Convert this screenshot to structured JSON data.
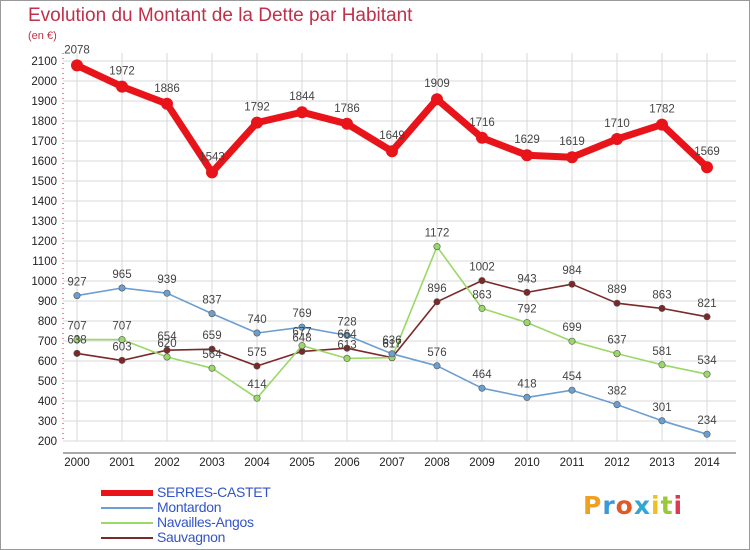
{
  "title": "Evolution du Montant de la Dette par Habitant",
  "unit": "(en €)",
  "logo": {
    "text": "Proxiti",
    "colors": [
      "#f0a020",
      "#3a9ad8",
      "#e05a28",
      "#30a8d0",
      "#f0c020",
      "#9ac838",
      "#e03850"
    ]
  },
  "chart_data": {
    "type": "line",
    "x": [
      "2000",
      "2001",
      "2002",
      "2003",
      "2004",
      "2005",
      "2006",
      "2007",
      "2008",
      "2009",
      "2010",
      "2011",
      "2012",
      "2013",
      "2014"
    ],
    "ylim": [
      200,
      2100
    ],
    "yticks": [
      "200",
      "300",
      "400",
      "500",
      "600",
      "700",
      "800",
      "900",
      "1000",
      "1100",
      "1200",
      "1300",
      "1400",
      "1500",
      "1600",
      "1700",
      "1800",
      "1900",
      "2000",
      "2100"
    ],
    "grid": true,
    "legend_position": "bottom-left",
    "series": [
      {
        "name": "SERRES-CASTET",
        "color": "#e8141a",
        "values": [
          2078,
          1972,
          1886,
          1543,
          1792,
          1844,
          1786,
          1649,
          1909,
          1716,
          1629,
          1619,
          1710,
          1782,
          1569
        ],
        "labels": [
          "2078",
          "1972",
          "1886",
          "1543",
          "1792",
          "1844",
          "1786",
          "1649",
          "1909",
          "1716",
          "1629",
          "1619",
          "1710",
          "1782",
          "1569"
        ]
      },
      {
        "name": "Montardon",
        "color": "#6c9ed0",
        "values": [
          927,
          965,
          939,
          837,
          740,
          769,
          728,
          636,
          576,
          464,
          418,
          454,
          382,
          301,
          234
        ],
        "labels": [
          "927",
          "965",
          "939",
          "837",
          "740",
          "769",
          "728",
          "636",
          "576",
          "464",
          "418",
          "454",
          "382",
          "301",
          "234"
        ]
      },
      {
        "name": "Navailles-Angos",
        "color": "#9ad868",
        "values": [
          707,
          707,
          620,
          564,
          414,
          677,
          613,
          617,
          1172,
          863,
          792,
          699,
          637,
          581,
          534
        ],
        "labels": [
          "707",
          "707",
          "620",
          "564",
          "414",
          "677",
          "613",
          "617",
          "1172",
          "863",
          "792",
          "699",
          "637",
          "581",
          "534"
        ]
      },
      {
        "name": "Sauvagnon",
        "color": "#7a2828",
        "values": [
          638,
          603,
          654,
          659,
          575,
          648,
          664,
          617,
          896,
          1002,
          943,
          984,
          889,
          863,
          821
        ],
        "labels": [
          "638",
          "603",
          "654",
          "659",
          "575",
          "648",
          "664",
          "617",
          "896",
          "1002",
          "943",
          "984",
          "889",
          "863",
          "821"
        ]
      }
    ]
  }
}
